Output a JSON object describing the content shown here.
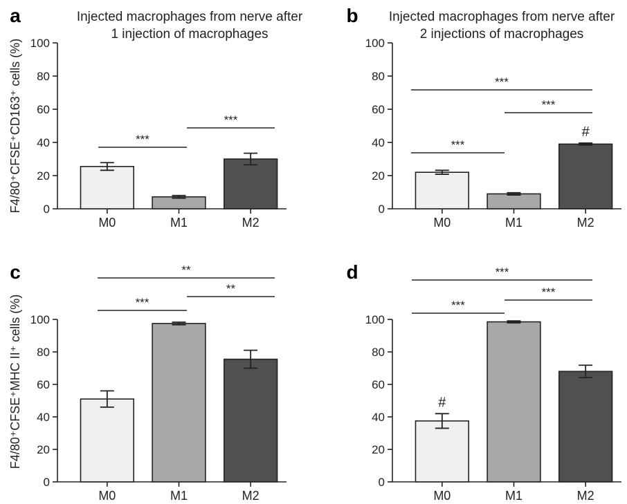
{
  "figure": {
    "ylabels": {
      "top": "F4/80⁺CFSE⁺CD163⁺ cells (%)",
      "bottom": "F4/80⁺CFSE⁺MHC II⁺ cells (%)"
    }
  },
  "colors": {
    "M0": "#efefef",
    "M1": "#a8a8a8",
    "M2": "#505050",
    "axis": "#222222"
  },
  "chart_data": [
    {
      "panel": "a",
      "type": "bar",
      "title_lines": [
        "Injected macrophages from nerve after",
        "1 injection of macrophages"
      ],
      "categories": [
        "M0",
        "M1",
        "M2"
      ],
      "values": [
        25.5,
        7.2,
        30
      ],
      "errors": [
        2.3,
        0.8,
        3.5
      ],
      "ylim": [
        0,
        100
      ],
      "yticks": [
        "0",
        "20",
        "40",
        "60",
        "80",
        "100"
      ],
      "significance": [
        {
          "from": 0,
          "to": 1,
          "label": "***"
        },
        {
          "from": 1,
          "to": 2,
          "label": "***"
        }
      ],
      "marks": []
    },
    {
      "panel": "b",
      "type": "bar",
      "title_lines": [
        "Injected macrophages from nerve after",
        "2 injections of macrophages"
      ],
      "categories": [
        "M0",
        "M1",
        "M2"
      ],
      "values": [
        22,
        9,
        39
      ],
      "errors": [
        1.2,
        0.7,
        0.6
      ],
      "ylim": [
        0,
        100
      ],
      "yticks": [
        "0",
        "20",
        "40",
        "60",
        "80",
        "100"
      ],
      "significance": [
        {
          "from": 0,
          "to": 1,
          "label": "***"
        },
        {
          "from": 1,
          "to": 2,
          "label": "***"
        },
        {
          "from": 0,
          "to": 2,
          "label": "***"
        }
      ],
      "marks": [
        {
          "bar": 2,
          "label": "#"
        }
      ]
    },
    {
      "panel": "c",
      "type": "bar",
      "title_lines": [],
      "categories": [
        "M0",
        "M1",
        "M2"
      ],
      "values": [
        51,
        97.5,
        75.5
      ],
      "errors": [
        5,
        0.8,
        5.5
      ],
      "ylim": [
        0,
        100
      ],
      "yticks": [
        "0",
        "20",
        "40",
        "60",
        "80",
        "100"
      ],
      "significance": [
        {
          "from": 0,
          "to": 1,
          "label": "***"
        },
        {
          "from": 1,
          "to": 2,
          "label": "**"
        },
        {
          "from": 0,
          "to": 2,
          "label": "**"
        }
      ],
      "marks": []
    },
    {
      "panel": "d",
      "type": "bar",
      "title_lines": [],
      "categories": [
        "M0",
        "M1",
        "M2"
      ],
      "values": [
        37.5,
        98.5,
        68
      ],
      "errors": [
        4.5,
        0.6,
        3.8
      ],
      "ylim": [
        0,
        100
      ],
      "yticks": [
        "0",
        "20",
        "40",
        "60",
        "80",
        "100"
      ],
      "significance": [
        {
          "from": 0,
          "to": 1,
          "label": "***"
        },
        {
          "from": 1,
          "to": 2,
          "label": "***"
        },
        {
          "from": 0,
          "to": 2,
          "label": "***"
        }
      ],
      "marks": [
        {
          "bar": 0,
          "label": "#"
        }
      ]
    }
  ]
}
